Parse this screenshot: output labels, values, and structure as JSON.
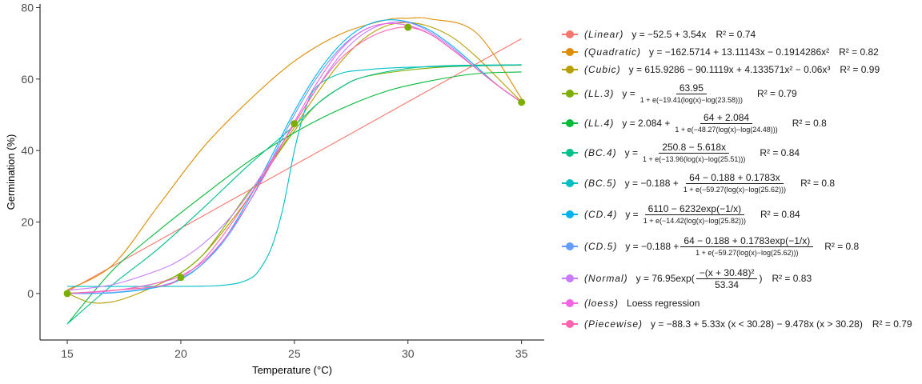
{
  "chart_data": {
    "type": "line",
    "title": "",
    "xlabel": "Temperature (°C)",
    "ylabel": "Germination (%)",
    "xlim": [
      13.8,
      36.0
    ],
    "ylim": [
      -13.0,
      81.0
    ],
    "xticks": [
      15,
      20,
      25,
      30,
      35
    ],
    "yticks": [
      0,
      20,
      40,
      60,
      80
    ],
    "xtick_labels": [
      "15",
      "20",
      "25",
      "30",
      "35"
    ],
    "ytick_labels": [
      "0",
      "20",
      "40",
      "60",
      "80"
    ],
    "observed": {
      "x": [
        15,
        20,
        25,
        30,
        35
      ],
      "y": [
        0,
        4.5,
        47.5,
        74.5,
        53.5
      ],
      "color": "#7CAE00"
    },
    "series": [
      {
        "name": "(Linear)",
        "eq": "y = −52.5 + 3.54x",
        "r2": "R² = 0.74",
        "color": "#F8766D",
        "x": [
          15,
          35
        ],
        "y": [
          0.6,
          71.3
        ]
      },
      {
        "name": "(Quadratic)",
        "eq": "y = −162.5714 + 13.11143x − 0.1914286x²",
        "r2": "R² = 0.82",
        "color": "#DE8C00",
        "x": [
          15,
          17,
          19,
          21,
          23,
          25,
          27,
          29,
          30,
          31,
          33,
          35
        ],
        "y": [
          1.0,
          8.0,
          24.5,
          41.0,
          54.0,
          65.0,
          72.5,
          76.5,
          77.0,
          76.8,
          73.0,
          54.5
        ]
      },
      {
        "name": "(Cubic)",
        "eq": "y = 615.9286 − 90.1119x + 4.133571x² − 0.06x³",
        "r2": "R² = 0.99",
        "color": "#B79F00",
        "x": [
          15,
          16,
          17,
          18,
          19,
          20,
          21,
          22,
          23,
          24,
          25,
          26,
          27,
          28,
          29,
          30,
          31,
          32,
          33,
          34,
          35
        ],
        "y": [
          0.1,
          -2.5,
          -2.3,
          -0.3,
          2.5,
          5.7,
          11.0,
          18.5,
          27.0,
          36.5,
          46.5,
          56.0,
          64.5,
          71.0,
          74.8,
          75.8,
          74.6,
          71.5,
          66.3,
          60.0,
          53.6
        ]
      },
      {
        "name": "(LL.3)",
        "eq": "y = 63.95 / (1 + e^(−19.41(log(x)−log(23.58))))",
        "r2": "R² = 0.79",
        "color": "#7CAE00",
        "x": [
          15,
          17,
          19,
          20,
          21,
          22,
          23,
          23.58,
          24,
          25,
          26,
          27,
          28,
          30,
          32,
          35
        ],
        "y": [
          0.1,
          0.8,
          3.0,
          5.8,
          11.0,
          19.5,
          28.5,
          32.0,
          36.5,
          45.5,
          53.0,
          57.5,
          60.5,
          62.5,
          63.5,
          63.9
        ]
      },
      {
        "name": "(LL.4)",
        "eq": "y = 2.084 + (64 + 2.084) / (1 + e^(−48.27(log(x)−log(24.48))))",
        "r2": "R² = 0.8",
        "color": "#00BA38",
        "x": [
          15,
          17,
          19,
          21,
          23,
          25,
          27,
          29,
          31,
          33,
          35
        ],
        "y": [
          -8.5,
          6.5,
          17.5,
          27.5,
          37.0,
          45.0,
          51.5,
          56.5,
          59.5,
          61.5,
          62.0
        ]
      },
      {
        "name": "(BC.4)",
        "eq": "y = (250.8 − 5.618x) / (1 + e^(−13.96(log(x)−log(25.51))))",
        "r2": "R² = 0.84",
        "color": "#00C08B",
        "x": [
          15,
          17,
          19,
          21,
          23,
          25,
          26,
          27,
          28,
          30,
          32,
          35
        ],
        "y": [
          -8.5,
          2.5,
          12.5,
          24.0,
          36.0,
          47.0,
          53.0,
          57.5,
          60.5,
          63.0,
          63.8,
          64.0
        ]
      },
      {
        "name": "(BC.5)",
        "eq": "y = −0.188 + (64 − 0.188 + 0.1783x) / (1 + e^(−59.27(log(x)−log(25.62))))",
        "r2": "R² = 0.8",
        "color": "#00BFC4",
        "x": [
          15,
          20,
          22,
          23,
          23.5,
          24,
          24.5,
          25,
          25.5,
          26,
          27,
          28,
          30,
          35
        ],
        "y": [
          2.0,
          2.0,
          2.4,
          4.0,
          7.0,
          13.0,
          24.0,
          40.0,
          52.0,
          58.0,
          61.5,
          62.5,
          63.3,
          64.0
        ]
      },
      {
        "name": "(CD.4)",
        "eq": "y = (6110 − 6232exp(−1/x)) / (1 + e^(−14.42(log(x)−log(25.82))))",
        "r2": "R² = 0.84",
        "color": "#00B4F0",
        "x": [
          15,
          17,
          19,
          20,
          21,
          22,
          23,
          24,
          25,
          26,
          27,
          28,
          29,
          30,
          31,
          32,
          33,
          34,
          35
        ],
        "y": [
          0.0,
          0.2,
          1.8,
          4.0,
          8.5,
          16.0,
          26.5,
          38.5,
          51.0,
          61.5,
          69.5,
          74.5,
          76.5,
          76.0,
          73.5,
          69.0,
          63.5,
          58.0,
          53.5
        ]
      },
      {
        "name": "(CD.5)",
        "eq": "y = −0.188 + (64 − 0.188 + 0.1783exp(−1/x)) / (1 + e^(−59.27(log(x)−log(25.62))))",
        "r2": "R² = 0.8",
        "color": "#619CFF",
        "x": [
          15,
          17,
          19,
          20,
          21,
          22,
          23,
          24,
          25,
          26,
          27,
          28,
          29,
          30,
          31,
          32,
          33,
          34,
          35
        ],
        "y": [
          0.0,
          0.3,
          2.0,
          4.2,
          8.5,
          15.5,
          25.5,
          37.5,
          50.0,
          60.5,
          68.5,
          73.5,
          75.5,
          75.0,
          72.5,
          68.0,
          63.0,
          58.0,
          53.5
        ]
      },
      {
        "name": "(Normal)",
        "eq": "y = 76.95exp(−(x + 30.48)² / 53.34)",
        "r2": "R² = 0.83",
        "color": "#C77CFF",
        "x": [
          15,
          17,
          19,
          20,
          21,
          22,
          23,
          24,
          25,
          26,
          27,
          28,
          29,
          30,
          31,
          32,
          33,
          34,
          35
        ],
        "y": [
          0.9,
          2.5,
          6.5,
          9.5,
          14.0,
          20.0,
          28.0,
          37.5,
          47.5,
          57.5,
          66.5,
          72.5,
          75.5,
          75.8,
          73.0,
          68.5,
          63.0,
          58.0,
          53.5
        ]
      },
      {
        "name": "(loess)",
        "eq": "Loess regression",
        "r2": "",
        "color": "#F564E3",
        "x": [
          15,
          17,
          19,
          20,
          21,
          22,
          23,
          24,
          25,
          26,
          27,
          28,
          29,
          30,
          31,
          32,
          33,
          34,
          35
        ],
        "y": [
          0.0,
          0.8,
          3.0,
          5.0,
          9.0,
          16.0,
          25.5,
          36.5,
          48.0,
          59.0,
          68.0,
          73.5,
          75.5,
          75.0,
          72.5,
          68.0,
          63.0,
          58.0,
          53.5
        ]
      },
      {
        "name": "(Piecewise)",
        "eq": "y = −88.3 + 5.33x (x < 30.28) − 9.478x (x > 30.28)",
        "r2": "R² = 0.79",
        "color": "#FF64B0",
        "x": [
          15,
          19,
          20,
          21,
          22,
          23,
          24,
          25,
          26,
          27,
          28,
          29,
          30,
          31,
          32,
          33,
          34,
          35
        ],
        "y": [
          0.0,
          2.0,
          4.5,
          9.5,
          17.5,
          27.0,
          37.0,
          47.5,
          57.5,
          65.5,
          70.5,
          73.5,
          74.5,
          72.5,
          68.0,
          63.0,
          58.0,
          53.5
        ]
      }
    ]
  },
  "legend": [
    {
      "name": "(Linear)",
      "color": "#F8766D",
      "eq": "y = −52.5 + 3.54x",
      "r2": "R² = 0.74"
    },
    {
      "name": "(Quadratic)",
      "color": "#DE8C00",
      "eq": "y = −162.5714 + 13.11143x − 0.1914286x²",
      "r2": "R² = 0.82"
    },
    {
      "name": "(Cubic)",
      "color": "#B79F00",
      "eq": "y = 615.9286 − 90.1119x + 4.133571x² − 0.06x³",
      "r2": "R² = 0.99"
    },
    {
      "name": "(LL.3)",
      "color": "#7CAE00",
      "eq_prefix": "y =",
      "num": "63.95",
      "den": "1 + e(−19.41(log(x)−log(23.58)))",
      "r2": "R² = 0.79"
    },
    {
      "name": "(LL.4)",
      "color": "#00BA38",
      "eq_prefix": "y = 2.084 +",
      "num": "64 + 2.084",
      "den": "1 + e(−48.27(log(x)−log(24.48)))",
      "r2": "R² = 0.8"
    },
    {
      "name": "(BC.4)",
      "color": "#00C08B",
      "eq_prefix": "y =",
      "num": "250.8 − 5.618x",
      "den": "1 + e(−13.96(log(x)−log(25.51)))",
      "r2": "R² = 0.84"
    },
    {
      "name": "(BC.5)",
      "color": "#00BFC4",
      "eq_prefix": "y = −0.188 +",
      "num": "64 − 0.188 + 0.1783x",
      "den": "1 + e(−59.27(log(x)−log(25.62)))",
      "r2": "R² = 0.8"
    },
    {
      "name": "(CD.4)",
      "color": "#00B4F0",
      "eq_prefix": "y =",
      "num": "6110 − 6232exp(−1/x)",
      "den": "1 + e(−14.42(log(x)−log(25.82)))",
      "r2": "R² = 0.84"
    },
    {
      "name": "(CD.5)",
      "color": "#619CFF",
      "eq_prefix": "y = −0.188 +",
      "num": "64 − 0.188 + 0.1783exp(−1/x)",
      "den": "1 + e(−59.27(log(x)−log(25.62)))",
      "r2": "R² = 0.8"
    },
    {
      "name": "(Normal)",
      "color": "#C77CFF",
      "eq_prefix": "y = 76.95exp(",
      "num": "−(x + 30.48)²",
      "den": "53.34",
      "eq_suffix": ")",
      "r2": "R² = 0.83"
    },
    {
      "name": "(loess)",
      "color": "#F564E3",
      "eq": "Loess regression",
      "r2": ""
    },
    {
      "name": "(Piecewise)",
      "color": "#FF64B0",
      "eq": "y = −88.3 + 5.33x (x < 30.28) − 9.478x (x > 30.28)",
      "r2": "R² = 0.79"
    }
  ]
}
